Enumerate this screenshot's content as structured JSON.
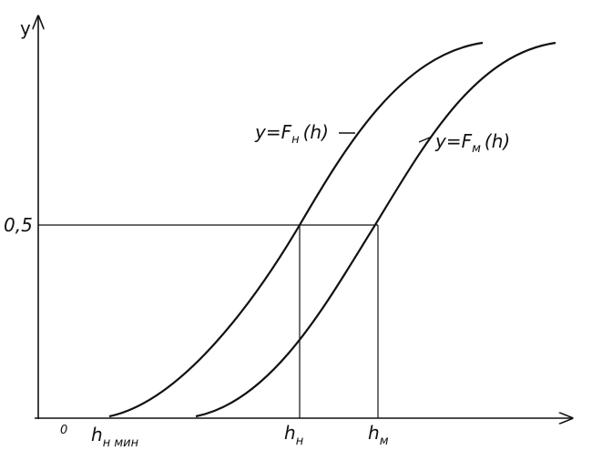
{
  "axes": {
    "y_label": "y",
    "y_tick": "0,5",
    "origin": "0"
  },
  "x_labels": [
    {
      "main": "h",
      "sub": "н мин"
    },
    {
      "main": "h",
      "sub": "н"
    },
    {
      "main": "h",
      "sub": "м"
    }
  ],
  "curves": [
    {
      "prefix": "y=F",
      "sub": "н",
      "suffix": "(h)"
    },
    {
      "prefix": "y=F",
      "sub": "м",
      "suffix": "(h)"
    }
  ]
}
